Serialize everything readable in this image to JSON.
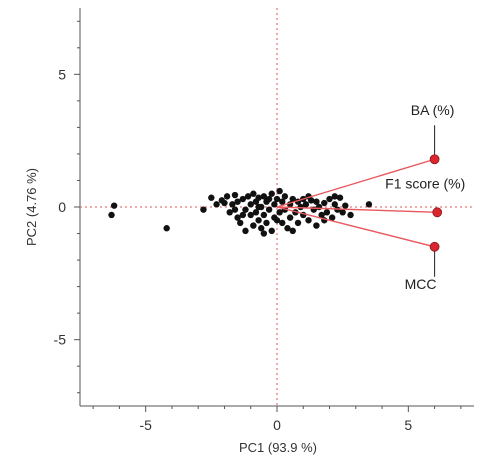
{
  "chart_data": {
    "type": "scatter",
    "title": "",
    "xlabel": "PC1  (93.9 %)",
    "ylabel": "PC2  (4.76 %)",
    "xlim": [
      -7.5,
      7.5
    ],
    "ylim": [
      -7.5,
      7.5
    ],
    "x_ticks": [
      -5,
      0,
      5
    ],
    "y_ticks": [
      -5,
      0,
      5
    ],
    "zero_lines": true,
    "points": [
      {
        "x": -6.2,
        "y": 0.05
      },
      {
        "x": -6.3,
        "y": -0.3
      },
      {
        "x": -4.2,
        "y": -0.8
      },
      {
        "x": -2.8,
        "y": -0.1
      },
      {
        "x": -2.5,
        "y": 0.35
      },
      {
        "x": -2.3,
        "y": 0.1
      },
      {
        "x": -2.1,
        "y": 0.25
      },
      {
        "x": -1.9,
        "y": 0.4
      },
      {
        "x": -1.8,
        "y": -0.2
      },
      {
        "x": -1.7,
        "y": 0.1
      },
      {
        "x": -1.6,
        "y": 0.45
      },
      {
        "x": -1.5,
        "y": -0.4
      },
      {
        "x": -1.5,
        "y": 0.2
      },
      {
        "x": -1.4,
        "y": -0.6
      },
      {
        "x": -1.3,
        "y": 0.3
      },
      {
        "x": -1.2,
        "y": -0.1
      },
      {
        "x": -1.2,
        "y": -0.9
      },
      {
        "x": -1.1,
        "y": 0.4
      },
      {
        "x": -1.0,
        "y": -0.3
      },
      {
        "x": -1.0,
        "y": 0.1
      },
      {
        "x": -0.9,
        "y": 0.5
      },
      {
        "x": -0.9,
        "y": -0.7
      },
      {
        "x": -0.8,
        "y": 0.2
      },
      {
        "x": -0.8,
        "y": -0.2
      },
      {
        "x": -0.7,
        "y": 0.35
      },
      {
        "x": -0.7,
        "y": -0.5
      },
      {
        "x": -0.6,
        "y": 0.0
      },
      {
        "x": -0.6,
        "y": -0.8
      },
      {
        "x": -0.5,
        "y": 0.4
      },
      {
        "x": -0.5,
        "y": -0.3
      },
      {
        "x": -0.4,
        "y": 0.2
      },
      {
        "x": -0.4,
        "y": -0.6
      },
      {
        "x": -0.3,
        "y": 0.3
      },
      {
        "x": -0.3,
        "y": -0.1
      },
      {
        "x": -0.2,
        "y": -0.9
      },
      {
        "x": -0.2,
        "y": 0.5
      },
      {
        "x": -0.1,
        "y": 0.1
      },
      {
        "x": -0.1,
        "y": -0.4
      },
      {
        "x": 0.0,
        "y": 0.3
      },
      {
        "x": 0.1,
        "y": -0.2
      },
      {
        "x": 0.1,
        "y": 0.6
      },
      {
        "x": 0.2,
        "y": -0.6
      },
      {
        "x": 0.2,
        "y": 0.2
      },
      {
        "x": 0.3,
        "y": 0.4
      },
      {
        "x": 0.3,
        "y": -0.1
      },
      {
        "x": 0.4,
        "y": -0.8
      },
      {
        "x": 0.5,
        "y": 0.1
      },
      {
        "x": 0.5,
        "y": -0.4
      },
      {
        "x": 0.6,
        "y": 0.3
      },
      {
        "x": 0.7,
        "y": -0.2
      },
      {
        "x": 0.8,
        "y": 0.2
      },
      {
        "x": 0.8,
        "y": -0.6
      },
      {
        "x": 0.9,
        "y": 0.0
      },
      {
        "x": 1.0,
        "y": 0.3
      },
      {
        "x": 1.0,
        "y": -0.3
      },
      {
        "x": 1.1,
        "y": 0.1
      },
      {
        "x": 1.2,
        "y": -0.5
      },
      {
        "x": 1.3,
        "y": 0.25
      },
      {
        "x": 1.4,
        "y": -0.1
      },
      {
        "x": 1.5,
        "y": 0.2
      },
      {
        "x": 1.5,
        "y": -0.7
      },
      {
        "x": 1.6,
        "y": 0.0
      },
      {
        "x": 1.7,
        "y": -0.3
      },
      {
        "x": 1.8,
        "y": 0.15
      },
      {
        "x": 1.9,
        "y": -0.2
      },
      {
        "x": 2.0,
        "y": 0.3
      },
      {
        "x": 2.1,
        "y": -0.4
      },
      {
        "x": 2.2,
        "y": 0.1
      },
      {
        "x": 2.3,
        "y": -0.1
      },
      {
        "x": 2.4,
        "y": 0.35
      },
      {
        "x": 2.5,
        "y": -0.2
      },
      {
        "x": 2.6,
        "y": 0.05
      },
      {
        "x": 2.8,
        "y": -0.3
      },
      {
        "x": 3.5,
        "y": 0.1
      },
      {
        "x": -1.3,
        "y": -0.3
      },
      {
        "x": -0.7,
        "y": 0.0
      },
      {
        "x": 0.6,
        "y": -0.9
      },
      {
        "x": 1.2,
        "y": 0.4
      },
      {
        "x": -2.0,
        "y": 0.15
      },
      {
        "x": -1.6,
        "y": -0.1
      },
      {
        "x": 0.0,
        "y": -0.5
      },
      {
        "x": 1.8,
        "y": -0.5
      },
      {
        "x": 2.2,
        "y": 0.4
      },
      {
        "x": -0.5,
        "y": -1.0
      }
    ],
    "loadings": [
      {
        "label": "BA (%)",
        "x": 6.0,
        "y": 1.8
      },
      {
        "label": "F1 score (%)",
        "x": 6.1,
        "y": -0.2
      },
      {
        "label": "MCC",
        "x": 6.0,
        "y": -1.5
      }
    ],
    "colors": {
      "points": "#111111",
      "vectors": "#e8585e",
      "vector_tip": "#d9262f",
      "zero_line": "#e05a5a",
      "axis": "#555555"
    }
  }
}
